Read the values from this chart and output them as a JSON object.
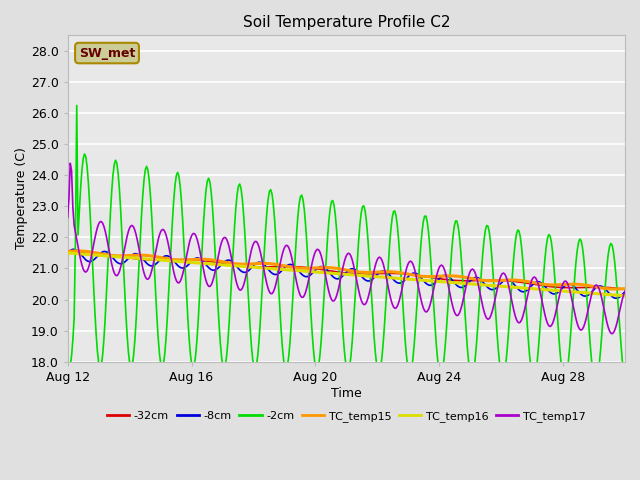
{
  "title": "Soil Temperature Profile C2",
  "xlabel": "Time",
  "ylabel": "Temperature (C)",
  "ylim": [
    18.0,
    28.5
  ],
  "yticks": [
    18.0,
    19.0,
    20.0,
    21.0,
    22.0,
    23.0,
    24.0,
    25.0,
    26.0,
    27.0,
    28.0
  ],
  "xtick_labels": [
    "Aug 12",
    "Aug 16",
    "Aug 20",
    "Aug 24",
    "Aug 28"
  ],
  "xtick_days": [
    0,
    4,
    8,
    12,
    16
  ],
  "bg_color": "#e0e0e0",
  "plot_bg": "#e8e8e8",
  "series_colors": {
    "-32cm": "#dd0000",
    "-8cm": "#0000dd",
    "-2cm": "#00dd00",
    "TC_temp15": "#ff9900",
    "TC_temp16": "#dddd00",
    "TC_temp17": "#aa00cc"
  },
  "annotation_text": "SW_met",
  "annotation_bg": "#cccc99",
  "annotation_border": "#aa8800",
  "annotation_text_color": "#660000"
}
